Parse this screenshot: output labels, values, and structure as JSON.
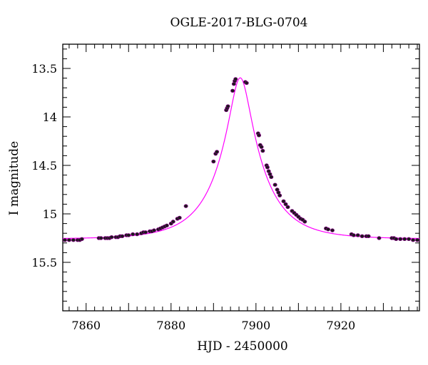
{
  "chart_data": {
    "type": "scatter",
    "title": "OGLE-2017-BLG-0704",
    "xlabel": "HJD - 2450000",
    "ylabel": "I magnitude",
    "xlim": [
      7854.5,
      7938.5
    ],
    "ylim": [
      16.0,
      13.25
    ],
    "y_inverted": true,
    "x_ticks": [
      7860,
      7880,
      7900,
      7920
    ],
    "x_tick_labels": [
      "7860",
      "7880",
      "7900",
      "7920"
    ],
    "y_ticks": [
      13.5,
      14,
      14.5,
      15,
      15.5
    ],
    "y_tick_labels": [
      "13.5",
      "14",
      "14.5",
      "15",
      "15.5"
    ],
    "grid": false,
    "colors": {
      "points": "#1a1a1a",
      "point_edge": "#800080",
      "model": "#ff00ff"
    },
    "model": {
      "name": "model",
      "baseline_mag": 15.26,
      "t0": 7896.3,
      "tE": 10.5,
      "u0": 0.22
    },
    "series": [
      {
        "x": [
          7855.0,
          7856.0,
          7857.0,
          7858.0,
          7858.5,
          7859.0,
          7863.0,
          7863.5,
          7864.5,
          7865.0,
          7865.5,
          7866.0,
          7867.0,
          7867.5,
          7868.0,
          7868.5,
          7869.5,
          7870.0,
          7871.0,
          7872.0,
          7873.0,
          7873.5,
          7874.0,
          7875.0,
          7875.5,
          7876.0,
          7877.0,
          7877.5,
          7878.0,
          7878.5,
          7879.0,
          7880.0,
          7880.5,
          7881.5,
          7882.0,
          7883.5,
          7890.0,
          7890.5,
          7890.8,
          7893.0,
          7893.2,
          7893.4,
          7894.5,
          7894.8,
          7895.0,
          7895.2,
          7897.5,
          7897.8,
          7900.5,
          7900.7,
          7901.0,
          7901.3,
          7901.6,
          7902.5,
          7902.7,
          7903.0,
          7903.3,
          7903.6,
          7904.5,
          7905.0,
          7905.3,
          7905.6,
          7906.5,
          7907.0,
          7907.5,
          7908.5,
          7909.0,
          7909.5,
          7910.0,
          7910.5,
          7911.0,
          7911.5,
          7916.5,
          7917.0,
          7918.0,
          7922.5,
          7923.0,
          7924.0,
          7925.0,
          7926.0,
          7926.5,
          7929.0,
          7932.0,
          7932.5,
          7933.0,
          7934.0,
          7935.0,
          7936.0,
          7937.0,
          7938.0
        ],
        "y": [
          15.27,
          15.27,
          15.27,
          15.27,
          15.27,
          15.26,
          15.25,
          15.25,
          15.25,
          15.25,
          15.25,
          15.24,
          15.24,
          15.24,
          15.23,
          15.23,
          15.22,
          15.22,
          15.21,
          15.21,
          15.2,
          15.19,
          15.19,
          15.18,
          15.18,
          15.17,
          15.16,
          15.15,
          15.14,
          15.13,
          15.12,
          15.1,
          15.08,
          15.05,
          15.04,
          14.92,
          14.46,
          14.38,
          14.36,
          13.93,
          13.91,
          13.89,
          13.73,
          13.66,
          13.63,
          13.61,
          13.64,
          13.65,
          14.17,
          14.19,
          14.29,
          14.31,
          14.35,
          14.5,
          14.52,
          14.56,
          14.59,
          14.62,
          14.7,
          14.75,
          14.78,
          14.81,
          14.87,
          14.9,
          14.93,
          14.97,
          14.99,
          15.01,
          15.03,
          15.05,
          15.06,
          15.08,
          15.15,
          15.16,
          15.17,
          15.21,
          15.22,
          15.22,
          15.23,
          15.23,
          15.23,
          15.25,
          15.25,
          15.25,
          15.26,
          15.26,
          15.26,
          15.26,
          15.27,
          15.27
        ]
      }
    ]
  }
}
